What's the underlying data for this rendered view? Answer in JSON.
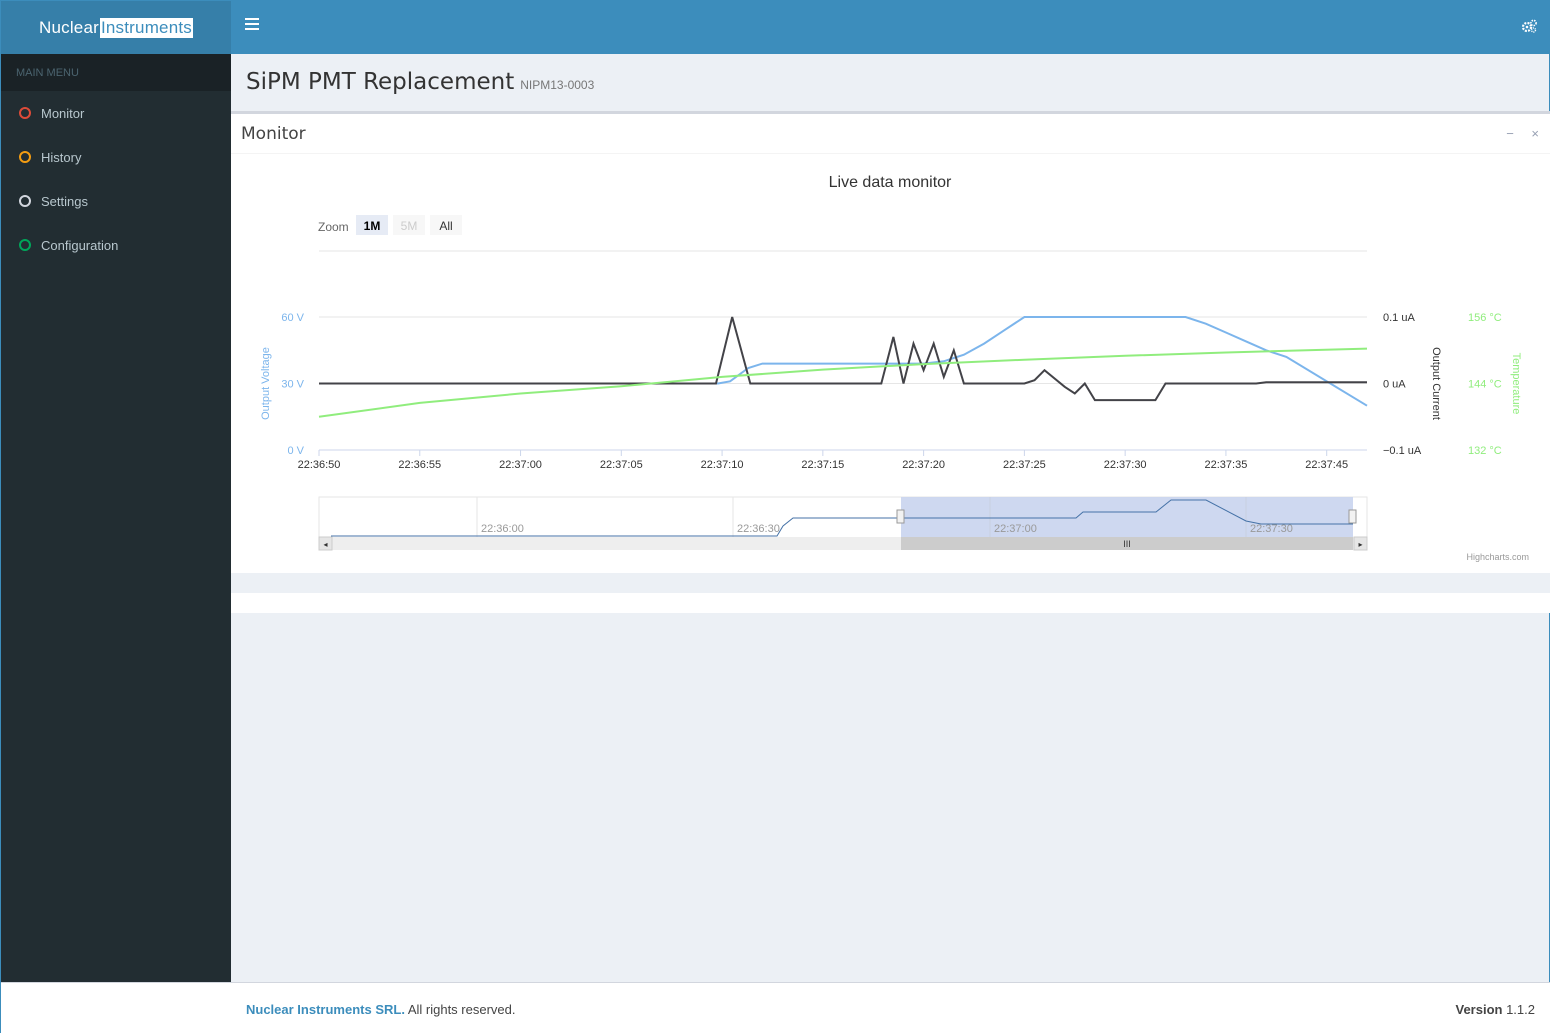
{
  "app": {
    "logo_part1": "Nuclear",
    "logo_part2": "Instruments",
    "menu_header": "MAIN MENU",
    "menu": [
      {
        "label": "Monitor",
        "color": "#dd4b39"
      },
      {
        "label": "History",
        "color": "#f39c12"
      },
      {
        "label": "Settings",
        "color": "#d2d6de"
      },
      {
        "label": "Configuration",
        "color": "#00a65a"
      }
    ]
  },
  "page": {
    "title": "SiPM PMT Replacement",
    "subtitle": "NIPM13-0003"
  },
  "box": {
    "title": "Monitor",
    "minimize": "−",
    "close": "×"
  },
  "chart_data": {
    "type": "line",
    "title": "Live data monitor",
    "zoom_label": "Zoom",
    "zoom_buttons": [
      "1M",
      "5M",
      "All"
    ],
    "zoom_selected": "1M",
    "x_ticks": [
      "22:36:50",
      "22:36:55",
      "22:37:00",
      "22:37:05",
      "22:37:10",
      "22:37:15",
      "22:37:20",
      "22:37:25",
      "22:37:30",
      "22:37:35",
      "22:37:45"
    ],
    "x_range_seconds": [
      0,
      52
    ],
    "y_axes": [
      {
        "label": "Output Voltage",
        "ticks": [
          "60 V",
          "30 V",
          "0 V"
        ],
        "range": [
          0,
          60
        ],
        "color": "#7cb5ec"
      },
      {
        "label": "Output Current",
        "ticks": [
          "0.1 uA",
          "0 uA",
          "−0.1 uA"
        ],
        "range": [
          -0.1,
          0.1
        ],
        "color": "#434348"
      },
      {
        "label": "Temperature",
        "ticks": [
          "156 °C",
          "144 °C",
          "132 °C"
        ],
        "range": [
          132,
          156
        ],
        "color": "#90ed7d"
      }
    ],
    "series": [
      {
        "name": "Output Voltage",
        "color": "#7cb5ec",
        "x": [
          0,
          5,
          10,
          15,
          19.8,
          20.4,
          21.3,
          22,
          25,
          28,
          29,
          30,
          31,
          32,
          33,
          34,
          35,
          36,
          37,
          38,
          40,
          42,
          43,
          44,
          45,
          46,
          47,
          48,
          52
        ],
        "y": [
          30,
          30,
          30,
          30,
          30,
          31,
          37,
          39,
          39,
          39,
          39,
          39,
          40,
          43,
          48,
          54,
          60,
          60,
          60,
          60,
          60,
          60,
          60,
          57,
          53,
          49,
          45,
          42,
          20
        ]
      },
      {
        "name": "Output Current",
        "color": "#434348",
        "x": [
          0,
          5,
          10,
          15,
          19.7,
          20.5,
          21.4,
          22,
          24,
          27.9,
          28.5,
          29,
          29.5,
          30,
          30.5,
          31,
          31.5,
          32,
          34,
          35,
          35.5,
          36,
          37,
          37.5,
          38,
          38.5,
          39,
          40,
          41,
          41.5,
          42,
          45,
          46.5,
          47,
          52
        ],
        "y": [
          0,
          0,
          0,
          0,
          0,
          0.1,
          0,
          0,
          0,
          0,
          0.07,
          0,
          0.06,
          0.02,
          0.06,
          0.01,
          0.05,
          0,
          0,
          0,
          0.005,
          0.02,
          -0.005,
          -0.015,
          0,
          -0.025,
          -0.025,
          -0.025,
          -0.025,
          -0.025,
          0,
          0,
          0,
          0.002,
          0.002
        ]
      },
      {
        "name": "Temperature",
        "color": "#90ed7d",
        "x": [
          0,
          5,
          10,
          15,
          20,
          25,
          30,
          35,
          40,
          45,
          52
        ],
        "y": [
          138,
          140.5,
          142.2,
          143.5,
          145.2,
          146.5,
          147.5,
          148.3,
          149,
          149.6,
          150.3
        ]
      }
    ],
    "navigator_ticks": [
      "22:36:00",
      "22:36:30",
      "22:37:00",
      "22:37:30"
    ],
    "credits": "Highcharts.com"
  },
  "footer": {
    "company": "Nuclear Instruments SRL.",
    "rights": " All rights reserved.",
    "version_label": "Version",
    "version": "1.1.2"
  }
}
